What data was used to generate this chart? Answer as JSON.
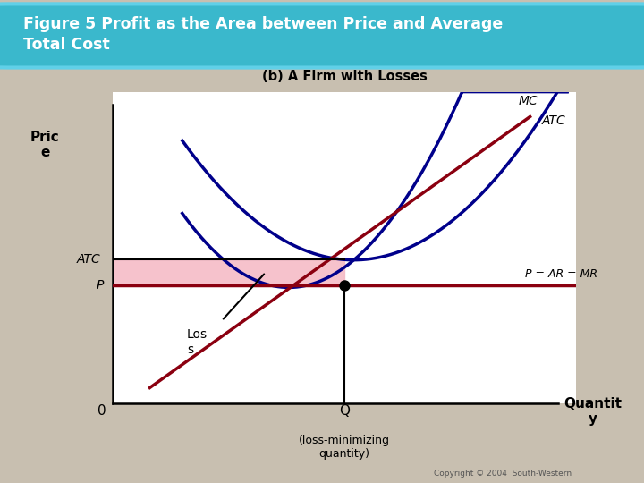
{
  "title": "Figure 5 Profit as the Area between Price and Average\nTotal Cost",
  "subtitle": "(b) A Firm with Losses",
  "bg_color": "#c8bfb0",
  "header_color": "#3ab8cc",
  "plot_bg": "#ffffff",
  "ylabel": "Pric\ne",
  "xlabel": "Quantit\ny",
  "x0_label": "0",
  "Q_label": "Q",
  "Q_sublabel": "(loss-minimizing\nquantity)",
  "ATC_ylabel": "ATC",
  "P_ylabel": "P",
  "MC_label": "MC",
  "ATC_label": "ATC",
  "MR_label": "P = AR = MR",
  "Loss_label": "Los\ns",
  "copyright": "Copyright © 2004  South-Western",
  "loss_fill_color": "#f5b8c4",
  "loss_fill_alpha": 0.85,
  "mc_red_color": "#8b0010",
  "atc_blue_color": "#00008b",
  "x_min": 0,
  "x_max": 10,
  "y_min": 0,
  "y_max": 10,
  "Q_intersect": 5.0,
  "P_level": 3.8,
  "ATC_at_Q": 5.0,
  "x_min_atc": 5.2,
  "min_atc": 4.6,
  "a_atc": 0.28,
  "mc_line_x1": 0.8,
  "mc_line_y1": 0.5,
  "mc_line_x2": 9.0,
  "mc_line_y2": 9.2
}
